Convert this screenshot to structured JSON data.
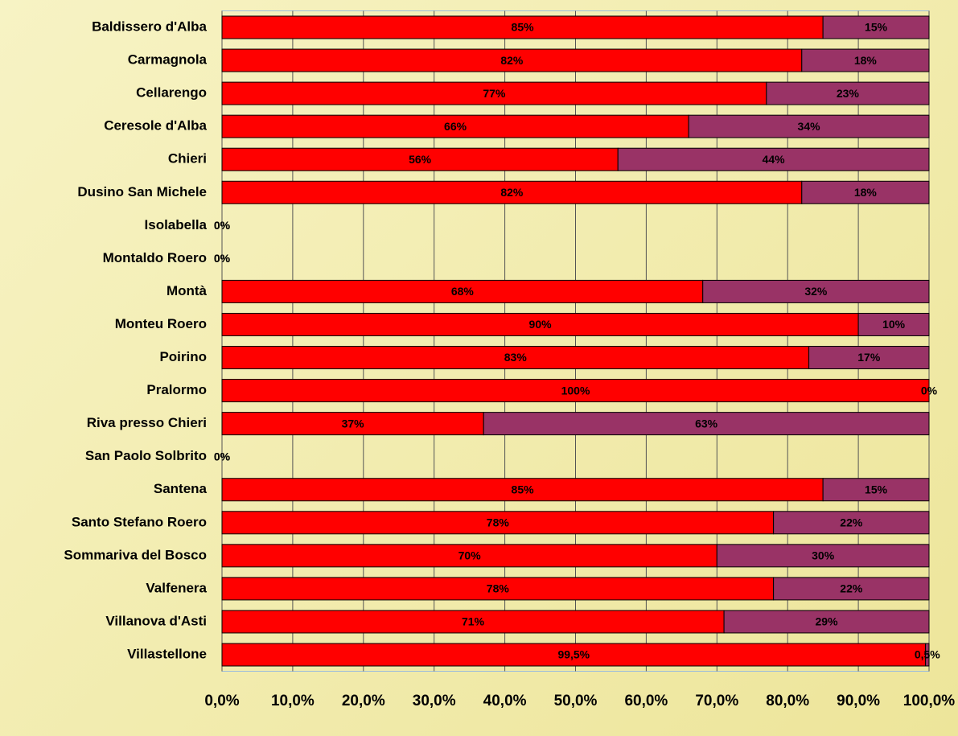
{
  "chart_data": {
    "type": "stacked-bar-horizontal",
    "categories": [
      "Baldissero d'Alba",
      "Carmagnola",
      "Cellarengo",
      "Ceresole d'Alba",
      "Chieri",
      "Dusino San Michele",
      "Isolabella",
      "Montaldo Roero",
      "Montà",
      "Monteu Roero",
      "Poirino",
      "Pralormo",
      "Riva presso Chieri",
      "San Paolo Solbrito",
      "Santena",
      "Santo Stefano Roero",
      "Sommariva del Bosco",
      "Valfenera",
      "Villanova d'Asti",
      "Villastellone"
    ],
    "series": [
      {
        "color": "#ff0000",
        "values": [
          85,
          82,
          77,
          66,
          56,
          82,
          0,
          0,
          68,
          90,
          83,
          100,
          37,
          0,
          85,
          78,
          70,
          78,
          71,
          99.5
        ],
        "value_labels": [
          "85%",
          "82%",
          "77%",
          "66%",
          "56%",
          "82%",
          "0%",
          "0%",
          "68%",
          "90%",
          "83%",
          "100%",
          "37%",
          "0%",
          "85%",
          "78%",
          "70%",
          "78%",
          "71%",
          "99,5%"
        ]
      },
      {
        "color": "#993366",
        "values": [
          15,
          18,
          23,
          34,
          44,
          18,
          0,
          0,
          32,
          10,
          17,
          0,
          63,
          0,
          15,
          22,
          30,
          22,
          29,
          0.5
        ],
        "value_labels": [
          "15%",
          "18%",
          "23%",
          "34%",
          "44%",
          "18%",
          "0%",
          "0%",
          "32%",
          "10%",
          "17%",
          "0%",
          "63%",
          "0%",
          "15%",
          "22%",
          "30%",
          "22%",
          "29%",
          "0,5%"
        ]
      }
    ],
    "xlim": [
      0,
      100
    ],
    "xticks": [
      {
        "value": 0,
        "label": "0,0%"
      },
      {
        "value": 10,
        "label": "10,0%"
      },
      {
        "value": 20,
        "label": "20,0%"
      },
      {
        "value": 30,
        "label": "30,0%"
      },
      {
        "value": 40,
        "label": "40,0%"
      },
      {
        "value": 50,
        "label": "50,0%"
      },
      {
        "value": 60,
        "label": "60,0%"
      },
      {
        "value": 70,
        "label": "70,0%"
      },
      {
        "value": 80,
        "label": "80,0%"
      },
      {
        "value": 90,
        "label": "90,0%"
      },
      {
        "value": 100,
        "label": "100,0%"
      }
    ],
    "grid": true
  }
}
